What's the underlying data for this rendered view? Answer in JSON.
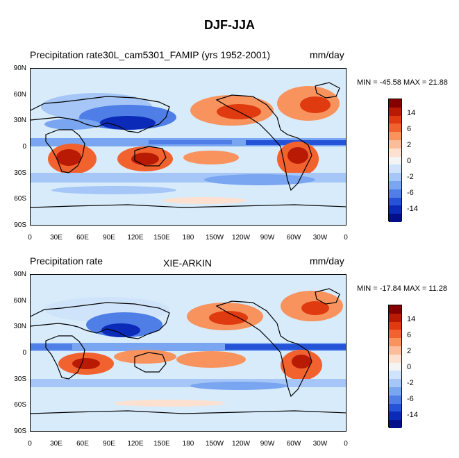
{
  "title": "DJF-JJA",
  "panels": [
    {
      "left_title": "Precipitation rate30L_cam5301_FAMIP (yrs 1952-2001)",
      "center_title": "",
      "units": "mm/day",
      "min_max": "MIN = -45.58 MAX =  21.88"
    },
    {
      "left_title": "Precipitation rate",
      "center_title": "XIE-ARKIN",
      "units": "mm/day",
      "min_max": "MIN = -17.84 MAX =  11.28"
    }
  ],
  "lat_labels": [
    "90N",
    "60N",
    "30N",
    "0",
    "30S",
    "60S",
    "90S"
  ],
  "lon_labels": [
    "0",
    "30E",
    "60E",
    "90E",
    "120E",
    "150E",
    "180",
    "150W",
    "120W",
    "90W",
    "60W",
    "30W",
    "0"
  ],
  "colorbar": {
    "labels": [
      "14",
      "6",
      "2",
      "0",
      "-2",
      "-6",
      "-14"
    ],
    "colors": [
      "#850000",
      "#b81a04",
      "#df3a10",
      "#f2622e",
      "#f8935e",
      "#fbbd99",
      "#fde0cf",
      "#f4f4f4",
      "#cfe3fa",
      "#a5c6f7",
      "#7aa5f0",
      "#4e7ee6",
      "#2553d8",
      "#0b2ab8",
      "#04108a"
    ]
  }
}
